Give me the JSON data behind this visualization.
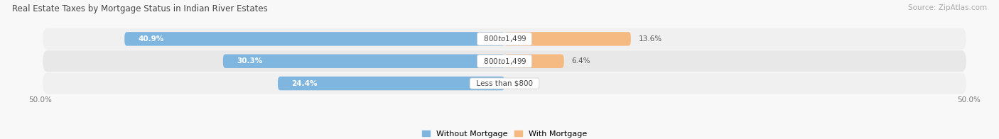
{
  "title": "Real Estate Taxes by Mortgage Status in Indian River Estates",
  "source": "Source: ZipAtlas.com",
  "rows": [
    {
      "label": "Less than $800",
      "without_mortgage": 24.4,
      "with_mortgage": 0.0
    },
    {
      "label": "$800 to $1,499",
      "without_mortgage": 30.3,
      "with_mortgage": 6.4
    },
    {
      "label": "$800 to $1,499",
      "without_mortgage": 40.9,
      "with_mortgage": 13.6
    }
  ],
  "x_min": -50.0,
  "x_max": 50.0,
  "bar_height": 0.62,
  "color_without": "#7EB6E0",
  "color_with": "#F5BA82",
  "legend_without": "Without Mortgage",
  "legend_with": "With Mortgage",
  "fig_bg": "#f8f8f8",
  "row_bg_even": "#f0f0f0",
  "row_bg_odd": "#e8e8e8",
  "title_fontsize": 8.5,
  "source_fontsize": 7.5,
  "label_fontsize": 7.5,
  "tick_fontsize": 7.5,
  "legend_fontsize": 8,
  "value_fontsize": 7.5
}
